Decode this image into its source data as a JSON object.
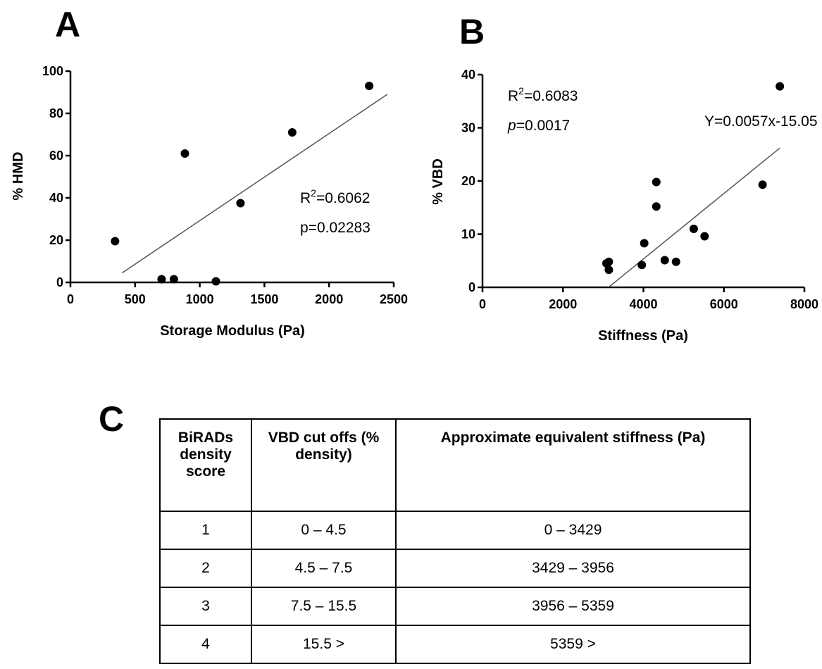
{
  "panels": {
    "a": "A",
    "b": "B",
    "c": "C"
  },
  "chart_data": [
    {
      "type": "scatter",
      "xlabel": "Storage Modulus (Pa)",
      "ylabel": "% HMD",
      "xlim": [
        0,
        2500
      ],
      "ylim": [
        0,
        100
      ],
      "xticks": [
        0,
        500,
        1000,
        1500,
        2000,
        2500
      ],
      "yticks": [
        0,
        20,
        40,
        60,
        80,
        100
      ],
      "points": [
        {
          "x": 345,
          "y": 19.5
        },
        {
          "x": 705,
          "y": 1.5
        },
        {
          "x": 800,
          "y": 1.5
        },
        {
          "x": 885,
          "y": 61
        },
        {
          "x": 1125,
          "y": 0.5
        },
        {
          "x": 1315,
          "y": 37.5
        },
        {
          "x": 1715,
          "y": 71
        },
        {
          "x": 2310,
          "y": 93
        }
      ],
      "fit_line": {
        "x": [
          400,
          2450
        ],
        "y": [
          4.5,
          89
        ]
      },
      "r2_prefix": "R",
      "r2_sup": "2",
      "r2_value": "=0.6062",
      "p_text": "p=0.02283",
      "grid": false
    },
    {
      "type": "scatter",
      "xlabel": "Stiffness (Pa)",
      "ylabel": "% VBD",
      "xlim": [
        0,
        8000
      ],
      "ylim": [
        0,
        40
      ],
      "xticks": [
        0,
        2000,
        4000,
        6000,
        8000
      ],
      "yticks": [
        0,
        10,
        20,
        30,
        40
      ],
      "points": [
        {
          "x": 3080,
          "y": 4.5
        },
        {
          "x": 3140,
          "y": 4.8
        },
        {
          "x": 3140,
          "y": 3.3
        },
        {
          "x": 3960,
          "y": 4.2
        },
        {
          "x": 4020,
          "y": 8.3
        },
        {
          "x": 4320,
          "y": 19.8
        },
        {
          "x": 4320,
          "y": 15.2
        },
        {
          "x": 4530,
          "y": 5.1
        },
        {
          "x": 4810,
          "y": 4.8
        },
        {
          "x": 5250,
          "y": 11
        },
        {
          "x": 5520,
          "y": 9.6
        },
        {
          "x": 6960,
          "y": 19.3
        },
        {
          "x": 7390,
          "y": 37.8
        }
      ],
      "fit_line": {
        "x": [
          3140,
          7390
        ],
        "y": [
          0.05,
          26.2
        ]
      },
      "r2_prefix": "R",
      "r2_sup": "2",
      "r2_value": "=0.6083",
      "p_italic": "p",
      "p_value": "=0.0017",
      "equation": "Y=0.0057x-15.05",
      "grid": false
    }
  ],
  "table": {
    "headers": [
      "BiRADs density score",
      "VBD cut offs (% density)",
      "Approximate  equivalent stiffness (Pa)"
    ],
    "rows": [
      [
        "1",
        "0 – 4.5",
        "0 – 3429"
      ],
      [
        "2",
        "4.5 – 7.5",
        "3429 – 3956"
      ],
      [
        "3",
        "7.5 – 15.5",
        "3956 – 5359"
      ],
      [
        "4",
        "15.5 >",
        "5359 >"
      ]
    ]
  }
}
